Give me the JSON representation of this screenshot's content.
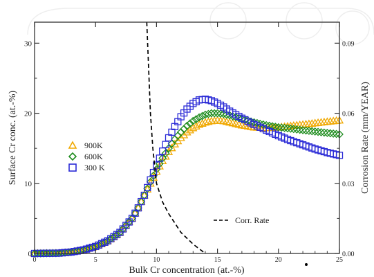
{
  "chart_data": {
    "type": "scatter",
    "xlabel": "Bulk Cr concentration (at.-%)",
    "ylabel_left": "Surface Cr conc. (at.-%)",
    "ylabel_right": "Corrosion Rate (mm/YEAR)",
    "xlim": [
      0,
      25
    ],
    "ylim_left": [
      0,
      33
    ],
    "ylim_right": [
      0,
      0.099
    ],
    "x_ticks": [
      "0",
      "5",
      "10",
      "15",
      "20",
      "25"
    ],
    "y_left_ticks": [
      "0",
      "10",
      "20",
      "30"
    ],
    "y_right_ticks": [
      "0.00",
      "0.03",
      "0.06",
      "0.09"
    ],
    "legend_position": "left-middle",
    "series": [
      {
        "name": "900K",
        "marker": "triangle",
        "color": "#f0a800",
        "axis": "left",
        "x": [
          0,
          2,
          3,
          4,
          5,
          6,
          7,
          8,
          8.5,
          9,
          9.5,
          10,
          10.5,
          11,
          11.5,
          12,
          12.5,
          13,
          13.5,
          14,
          14.5,
          15,
          15.5,
          16,
          17,
          18,
          19,
          20,
          21,
          22,
          23,
          24,
          25
        ],
        "y": [
          0,
          0.05,
          0.2,
          0.5,
          1.0,
          1.8,
          3.0,
          5.0,
          6.5,
          8.3,
          10.0,
          11.7,
          13.2,
          14.5,
          15.6,
          16.5,
          17.3,
          17.9,
          18.4,
          18.7,
          18.9,
          19.0,
          18.9,
          18.7,
          18.3,
          18.0,
          17.9,
          18.0,
          18.2,
          18.4,
          18.6,
          18.8,
          19.0
        ]
      },
      {
        "name": "600K",
        "marker": "diamond",
        "color": "#1e8c1e",
        "axis": "left",
        "x": [
          0,
          2,
          3,
          4,
          5,
          6,
          7,
          8,
          8.5,
          9,
          9.5,
          10,
          10.5,
          11,
          11.5,
          12,
          12.5,
          13,
          13.5,
          14,
          14.5,
          15,
          15.5,
          16,
          17,
          18,
          19,
          20,
          21,
          22,
          23,
          24,
          25
        ],
        "y": [
          0,
          0.05,
          0.2,
          0.5,
          1.0,
          1.8,
          3.0,
          5.0,
          6.5,
          8.3,
          10.2,
          12.0,
          13.6,
          15.0,
          16.3,
          17.3,
          18.2,
          18.9,
          19.4,
          19.8,
          20.0,
          20.0,
          19.9,
          19.7,
          19.2,
          18.7,
          18.3,
          18.0,
          17.8,
          17.6,
          17.4,
          17.2,
          17.0
        ]
      },
      {
        "name": "300 K",
        "marker": "square",
        "color": "#2a2ad6",
        "axis": "left",
        "x": [
          0,
          2,
          3,
          4,
          5,
          6,
          7,
          8,
          8.5,
          9,
          9.5,
          10,
          10.5,
          11,
          11.5,
          12,
          12.5,
          13,
          13.5,
          14,
          14.5,
          15,
          15.5,
          16,
          17,
          18,
          19,
          20,
          21,
          22,
          23,
          24,
          25
        ],
        "y": [
          0,
          0.05,
          0.2,
          0.5,
          1.0,
          1.8,
          3.0,
          5.0,
          6.5,
          8.3,
          10.5,
          12.6,
          14.6,
          16.5,
          18.1,
          19.5,
          20.6,
          21.4,
          21.9,
          22.0,
          21.8,
          21.4,
          20.9,
          20.3,
          19.3,
          18.4,
          17.6,
          16.8,
          16.1,
          15.5,
          14.9,
          14.4,
          14.0
        ]
      },
      {
        "name": "Corr. Rate",
        "style": "dashed",
        "color": "#000000",
        "axis": "right",
        "x": [
          9.2,
          9.35,
          9.5,
          9.7,
          10.0,
          10.5,
          11.0,
          11.5,
          12.0,
          12.5,
          13.0,
          13.5,
          14.0
        ],
        "y": [
          0.099,
          0.08,
          0.06,
          0.045,
          0.03,
          0.022,
          0.017,
          0.013,
          0.009,
          0.0065,
          0.004,
          0.002,
          0.0
        ]
      }
    ]
  }
}
